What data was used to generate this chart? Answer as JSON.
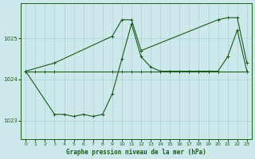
{
  "title": "Graphe pression niveau de la mer (hPa)",
  "bg_color": "#cce8ea",
  "grid_color": "#aad4d8",
  "line_color": "#1a5c1a",
  "xlim": [
    -0.5,
    23.5
  ],
  "ylim": [
    1022.55,
    1025.85
  ],
  "yticks": [
    1023,
    1024,
    1025
  ],
  "xticks": [
    0,
    1,
    2,
    3,
    4,
    5,
    6,
    7,
    8,
    9,
    10,
    11,
    12,
    13,
    14,
    15,
    16,
    17,
    18,
    19,
    20,
    21,
    22,
    23
  ],
  "series1_x": [
    0,
    1,
    2,
    3,
    9,
    10,
    11,
    12,
    13,
    14,
    15,
    16,
    17,
    18,
    19,
    20,
    23
  ],
  "series1_y": [
    1024.2,
    1024.2,
    1024.2,
    1024.2,
    1024.2,
    1024.2,
    1024.2,
    1024.2,
    1024.2,
    1024.2,
    1024.2,
    1024.2,
    1024.2,
    1024.2,
    1024.2,
    1024.2,
    1024.2
  ],
  "series2_x": [
    0,
    3,
    4,
    5,
    6,
    7,
    8,
    9,
    10,
    11,
    12,
    13,
    14,
    15,
    16,
    17,
    18,
    19,
    20,
    21,
    22,
    23
  ],
  "series2_y": [
    1024.2,
    1023.15,
    1023.15,
    1023.1,
    1023.15,
    1023.1,
    1023.15,
    1023.65,
    1024.5,
    1025.35,
    1024.55,
    1024.3,
    1024.2,
    1024.2,
    1024.2,
    1024.2,
    1024.2,
    1024.2,
    1024.2,
    1024.55,
    1025.2,
    1024.2
  ],
  "series3_x": [
    0,
    3,
    9,
    10,
    11,
    12,
    20,
    21,
    22,
    23
  ],
  "series3_y": [
    1024.2,
    1024.4,
    1025.05,
    1025.45,
    1025.45,
    1024.7,
    1025.45,
    1025.5,
    1025.5,
    1024.4
  ]
}
